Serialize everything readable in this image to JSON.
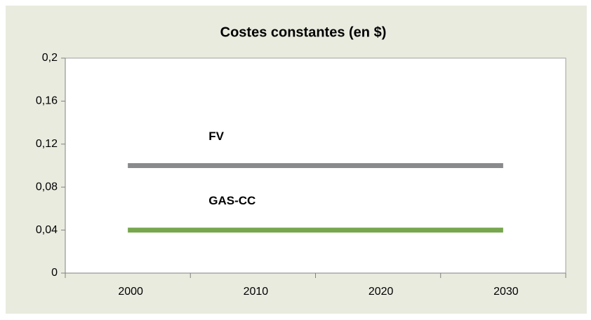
{
  "chart_data": {
    "type": "line",
    "title": "Costes constantes (en $)",
    "categories": [
      "2000",
      "2010",
      "2020",
      "2030"
    ],
    "series": [
      {
        "name": "FV",
        "color": "#898a8c",
        "values": [
          0.1,
          0.1,
          0.1,
          0.1
        ]
      },
      {
        "name": "GAS-CC",
        "color": "#77a64f",
        "values": [
          0.04,
          0.04,
          0.04,
          0.04
        ]
      }
    ],
    "ylim": [
      0,
      0.2
    ],
    "yticks": [
      0,
      {
        "value": 0.04,
        "label": "0,04"
      },
      {
        "value": 0.08,
        "label": "0,08"
      },
      {
        "value": 0.12,
        "label": "0,12"
      },
      {
        "value": 0.16,
        "label": "0,16"
      },
      {
        "value": 0.2,
        "label": "0,2"
      }
    ],
    "grid": false
  }
}
